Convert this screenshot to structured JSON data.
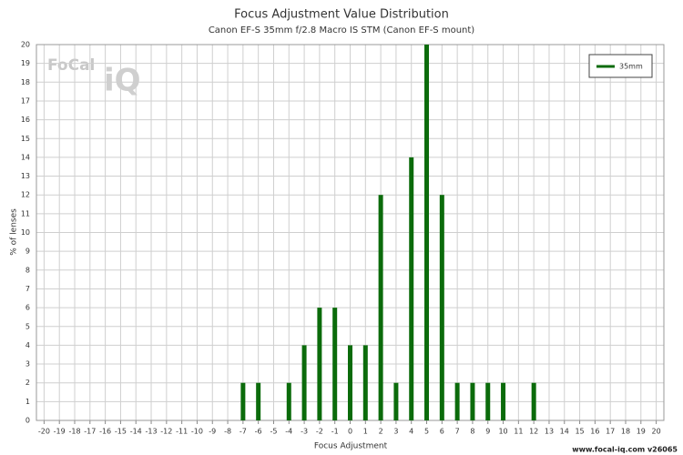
{
  "chart_data": {
    "type": "bar",
    "title": "Focus Adjustment Value Distribution",
    "subtitle": "Canon EF-S 35mm f/2.8 Macro IS STM (Canon EF-S mount)",
    "xlabel": "Focus Adjustment",
    "ylabel": "% of lenses",
    "logo_text": "FoCal",
    "logo_mark": "iQ",
    "footer": "www.focal-iq.com  v26065",
    "x": [
      -7,
      -6,
      -4,
      -3,
      -2,
      -1,
      0,
      1,
      2,
      3,
      4,
      5,
      6,
      7,
      8,
      9,
      10,
      12
    ],
    "series": [
      {
        "name": "35mm",
        "color": "#0b6b0b",
        "values": [
          2,
          2,
          2,
          4,
          6,
          6,
          4,
          4,
          12,
          2,
          14,
          20,
          12,
          2,
          2,
          2,
          2,
          2
        ]
      }
    ],
    "xlim": [
      -20.5,
      20.5
    ],
    "xticks": [
      -20,
      -19,
      -18,
      -17,
      -16,
      -15,
      -14,
      -13,
      -12,
      -11,
      -10,
      -9,
      -8,
      -7,
      -6,
      -5,
      -4,
      -3,
      -2,
      -1,
      0,
      1,
      2,
      3,
      4,
      5,
      6,
      7,
      8,
      9,
      10,
      11,
      12,
      13,
      14,
      15,
      16,
      17,
      18,
      19,
      20
    ],
    "ylim": [
      0,
      20
    ],
    "yticks": [
      0,
      1,
      2,
      3,
      4,
      5,
      6,
      7,
      8,
      9,
      10,
      11,
      12,
      13,
      14,
      15,
      16,
      17,
      18,
      19,
      20
    ],
    "grid": true,
    "legend": "top-right"
  }
}
